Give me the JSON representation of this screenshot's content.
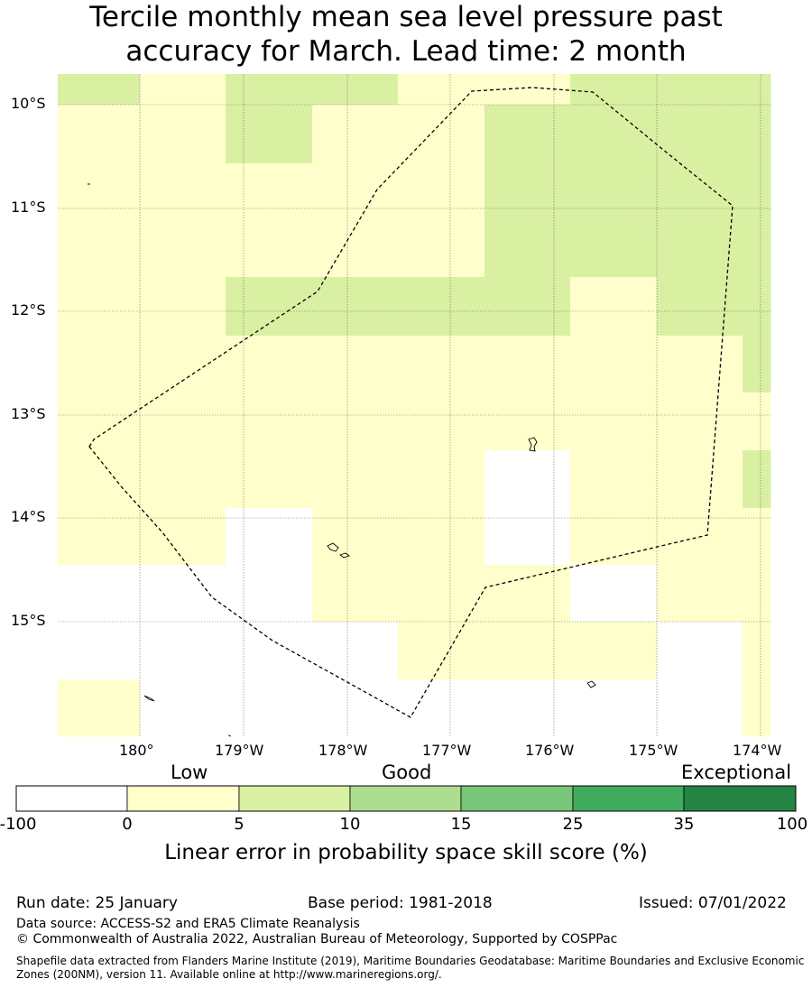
{
  "title_line1": "Tercile monthly mean sea level pressure past",
  "title_line2": "accuracy for March. Lead time: 2 month",
  "colors": {
    "white": "#ffffff",
    "pale_yellow": "#ffffcc",
    "light_green": "#d9f0a3",
    "mid_green": "#addd8e",
    "green": "#78c679",
    "dark_green": "#41ab5d",
    "darkest_green": "#238443"
  },
  "map": {
    "lon_labels": [
      "180°",
      "179°W",
      "178°W",
      "177°W",
      "176°W",
      "175°W",
      "174°W"
    ],
    "lat_labels": [
      "10°S",
      "11°S",
      "12°S",
      "13°S",
      "14°S",
      "15°S"
    ]
  },
  "colorbar": {
    "categories": [
      "Low",
      "Good",
      "Exceptional"
    ],
    "ticks": [
      "-100",
      "0",
      "5",
      "10",
      "15",
      "25",
      "35",
      "100"
    ],
    "title": "Linear error in probability space skill score (%)"
  },
  "footer": {
    "run_date": "Run date: 25 January",
    "base_period": "Base period: 1981-2018",
    "issued": "Issued: 07/01/2022",
    "data_source": "Data source: ACCESS-S2 and ERA5 Climate Reanalysis",
    "copyright": "© Commonwealth of Australia 2022, Australian Bureau of Meteorology, Supported by COSPPac",
    "shapefile_line1": "Shapefile data extracted from Flanders Marine Institute (2019), Maritime Boundaries Geodatabase: Maritime Boundaries and Exclusive Economic",
    "shapefile_line2": "Zones (200NM), version 11. Available online at http://www.marineregions.org/."
  }
}
